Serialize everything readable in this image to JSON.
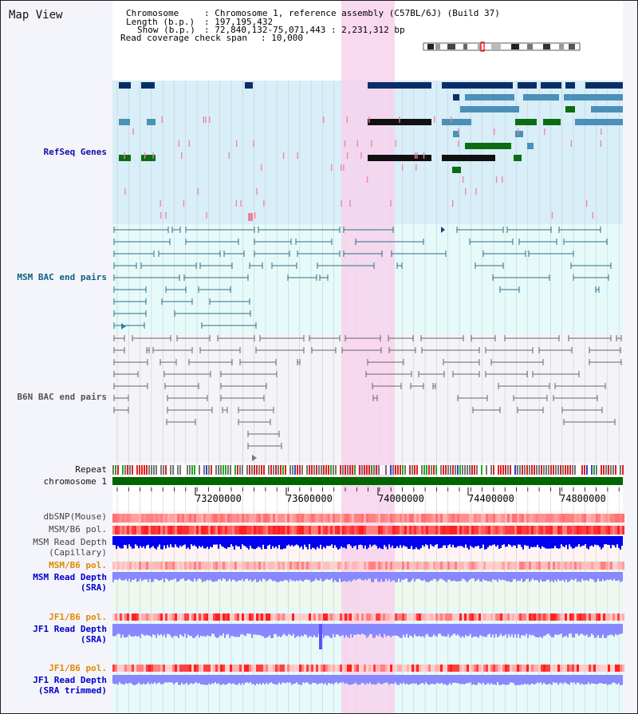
{
  "view_title": "Map View",
  "info": {
    "chromosome_key": "Chromosome",
    "chromosome_val": ": Chromosome 1, reference assembly (C57BL/6J) (Build 37)",
    "length_key": "Length (b.p.)",
    "length_val": ": 197,195,432",
    "show_key": "Show (b.p.)",
    "show_val": ": 72,840,132-75,071,443 : 2,231,312 bp",
    "coverage_key": "Read coverage check span",
    "coverage_val": ": 10,000"
  },
  "tracks": {
    "refseq": "RefSeq Genes",
    "msm_bac": "MSM BAC end pairs",
    "b6n_bac": "B6N BAC end pairs",
    "repeat": "Repeat",
    "chromosome": "chromosome 1",
    "dbsnp": "dbSNP(Mouse)",
    "msm_b6_pol": "MSM/B6 pol.",
    "msm_depth_cap_1": "MSM Read Depth",
    "msm_depth_cap_2": "(Capillary)",
    "msm_b6_pol2": "MSM/B6 pol.",
    "msm_depth_sra_1": "MSM Read Depth",
    "msm_depth_sra_2": "(SRA)",
    "jf1_pol": "JF1/B6 pol.",
    "jf1_depth_sra_1": "JF1 Read Depth",
    "jf1_depth_sra_2": "(SRA)",
    "jf1_pol2": "JF1/B6 pol.",
    "jf1_depth_trim_1": "JF1 Read Depth",
    "jf1_depth_trim_2": "(SRA trimmed)"
  },
  "axis": {
    "ticks": [
      "73200000",
      "73600000",
      "74000000",
      "74400000",
      "74800000"
    ]
  },
  "colors": {
    "refseq_bg": "#d8eef8",
    "msm_bac_bg": "#e6fafa",
    "b6n_bac_bg": "#f4f4f8",
    "highlight": "#f7d2ec",
    "refseq_label": "#1010a8",
    "msm_label": "#116080",
    "b6n_label": "#555555",
    "orange_label": "#e08a00",
    "blue_label": "#0000cc",
    "chromosome_bar": "#006600",
    "depth_dark": "#0000ee",
    "depth_light": "#8888ff"
  }
}
